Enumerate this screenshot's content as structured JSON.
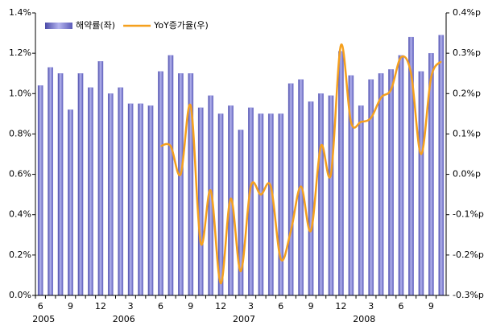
{
  "chart_data": {
    "type": "bar_line",
    "categories": [
      "6",
      null,
      null,
      "9",
      null,
      null,
      "12",
      null,
      null,
      "3",
      null,
      null,
      "6",
      null,
      null,
      "9",
      null,
      null,
      "12",
      null,
      null,
      "3",
      null,
      null,
      "6",
      null,
      null,
      "9",
      null,
      null,
      "12",
      null,
      null,
      "3",
      null,
      null,
      "6",
      null,
      null,
      "9",
      null
    ],
    "year_labels": [
      "2005",
      null,
      null,
      null,
      null,
      null,
      null,
      null,
      "2006",
      null,
      null,
      null,
      null,
      null,
      null,
      null,
      null,
      null,
      null,
      null,
      "2007",
      null,
      null,
      null,
      null,
      null,
      null,
      null,
      null,
      null,
      null,
      null,
      "2008",
      null,
      null,
      null,
      null,
      null,
      null,
      null,
      null
    ],
    "series": [
      {
        "name": "해약률(좌)",
        "color": "#7c7cd4",
        "chart": "bar",
        "values": [
          1.04,
          1.13,
          1.1,
          0.92,
          1.1,
          1.03,
          1.16,
          1.0,
          1.03,
          0.95,
          0.95,
          0.94,
          1.11,
          1.19,
          1.1,
          1.1,
          0.93,
          0.99,
          0.9,
          0.94,
          0.82,
          0.93,
          0.9,
          0.9,
          0.9,
          1.05,
          1.07,
          0.96,
          1.0,
          0.99,
          1.21,
          1.09,
          0.94,
          1.07,
          1.1,
          1.12,
          1.19,
          1.28,
          1.11,
          1.2,
          1.29
        ]
      },
      {
        "name": "YoY증가율(우)",
        "color": "#f5a01e",
        "chart": "line",
        "axis": "y2",
        "values": [
          null,
          null,
          null,
          null,
          null,
          null,
          null,
          null,
          null,
          null,
          null,
          null,
          0.07,
          0.07,
          0.0,
          0.17,
          -0.17,
          -0.04,
          -0.27,
          -0.06,
          -0.24,
          -0.03,
          -0.05,
          -0.03,
          -0.21,
          -0.14,
          -0.03,
          -0.14,
          0.07,
          0.0,
          0.32,
          0.13,
          0.13,
          0.14,
          0.19,
          0.21,
          0.29,
          0.25,
          0.05,
          0.24,
          0.28
        ]
      }
    ],
    "ylim": [
      0,
      1.4
    ],
    "yticks": [
      {
        "value": 0,
        "label": "0.0%"
      },
      {
        "value": 0.2,
        "label": "0.2%"
      },
      {
        "value": 0.4,
        "label": "0.4%"
      },
      {
        "value": 0.6,
        "label": "0.6%"
      },
      {
        "value": 0.8,
        "label": "0.8%"
      },
      {
        "value": 1.0,
        "label": "1.0%"
      },
      {
        "value": 1.2,
        "label": "1.2%"
      },
      {
        "value": 1.4,
        "label": "1.4%"
      }
    ],
    "y2lim": [
      -0.3,
      0.4
    ],
    "y2ticks": [
      {
        "value": -0.3,
        "label": "-0.3%p"
      },
      {
        "value": -0.2,
        "label": "-0.2%p"
      },
      {
        "value": -0.1,
        "label": "-0.1%p"
      },
      {
        "value": 0,
        "label": "0.0%p"
      },
      {
        "value": 0.1,
        "label": "0.1%p"
      },
      {
        "value": 0.2,
        "label": "0.2%p"
      },
      {
        "value": 0.3,
        "label": "0.3%p"
      },
      {
        "value": 0.4,
        "label": "0.4%p"
      }
    ],
    "legend": "top-left"
  }
}
